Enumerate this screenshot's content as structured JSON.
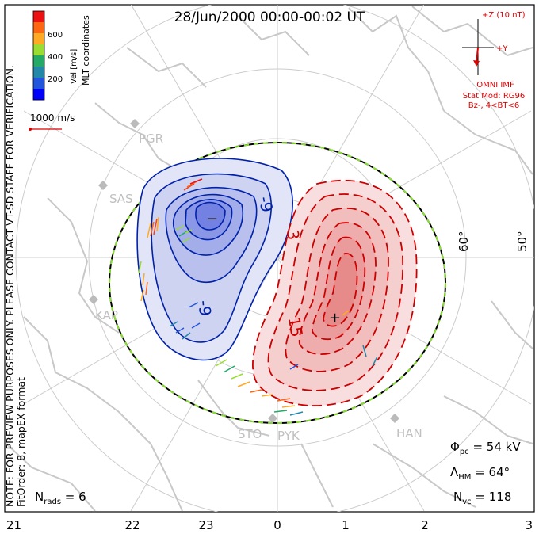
{
  "title": "28/Jun/2000 00:00-00:02 UT",
  "coord_label": "MLT coordinates",
  "colorbar": {
    "label": "Vel [m/s]",
    "ticks": [
      "600",
      "400",
      "200"
    ],
    "colors": [
      "#ee1111",
      "#ff6611",
      "#ffaa22",
      "#99dd33",
      "#22aa66",
      "#2288aa",
      "#2255dd",
      "#0000ff"
    ]
  },
  "reference_vector": "1000 m/s",
  "side_note_1": "NOTE: FOR PREVIEW PURPOSES ONLY. PLEASE CONTACT VT-SD STAFF FOR VERIFICATION.",
  "side_note_2": "FitOrder: 8, mapEX format",
  "imf": {
    "z_label": "+Z (10 nT)",
    "y_label": "+Y",
    "source": "OMNI IMF",
    "model": "Stat Mod: RG96",
    "condition": "Bz-, 4<BT<6"
  },
  "latitudes": [
    "60°",
    "50°"
  ],
  "stations": [
    "PGR",
    "SAS",
    "KAP",
    "STO",
    "PYK",
    "HAN"
  ],
  "contours": {
    "neg_label": "-9",
    "neg_label2": "-9",
    "pos_label": "3",
    "pos_label2": "15"
  },
  "extrema": {
    "min": "−",
    "max": "+"
  },
  "stats": {
    "phi_pc": "Φ",
    "phi_pc_sub": "pc",
    "phi_pc_val": " = 54 kV",
    "lambda_hm": "Λ",
    "lambda_hm_sub": "HM",
    "lambda_hm_val": " = 64°",
    "n_rads": "N",
    "n_rads_sub": "rads",
    "n_rads_val": " = 6",
    "n_vc": "N",
    "n_vc_sub": "vc",
    "n_vc_val": " = 118"
  },
  "mlt_ticks": [
    "21",
    "22",
    "23",
    "0",
    "1",
    "2",
    "3"
  ]
}
